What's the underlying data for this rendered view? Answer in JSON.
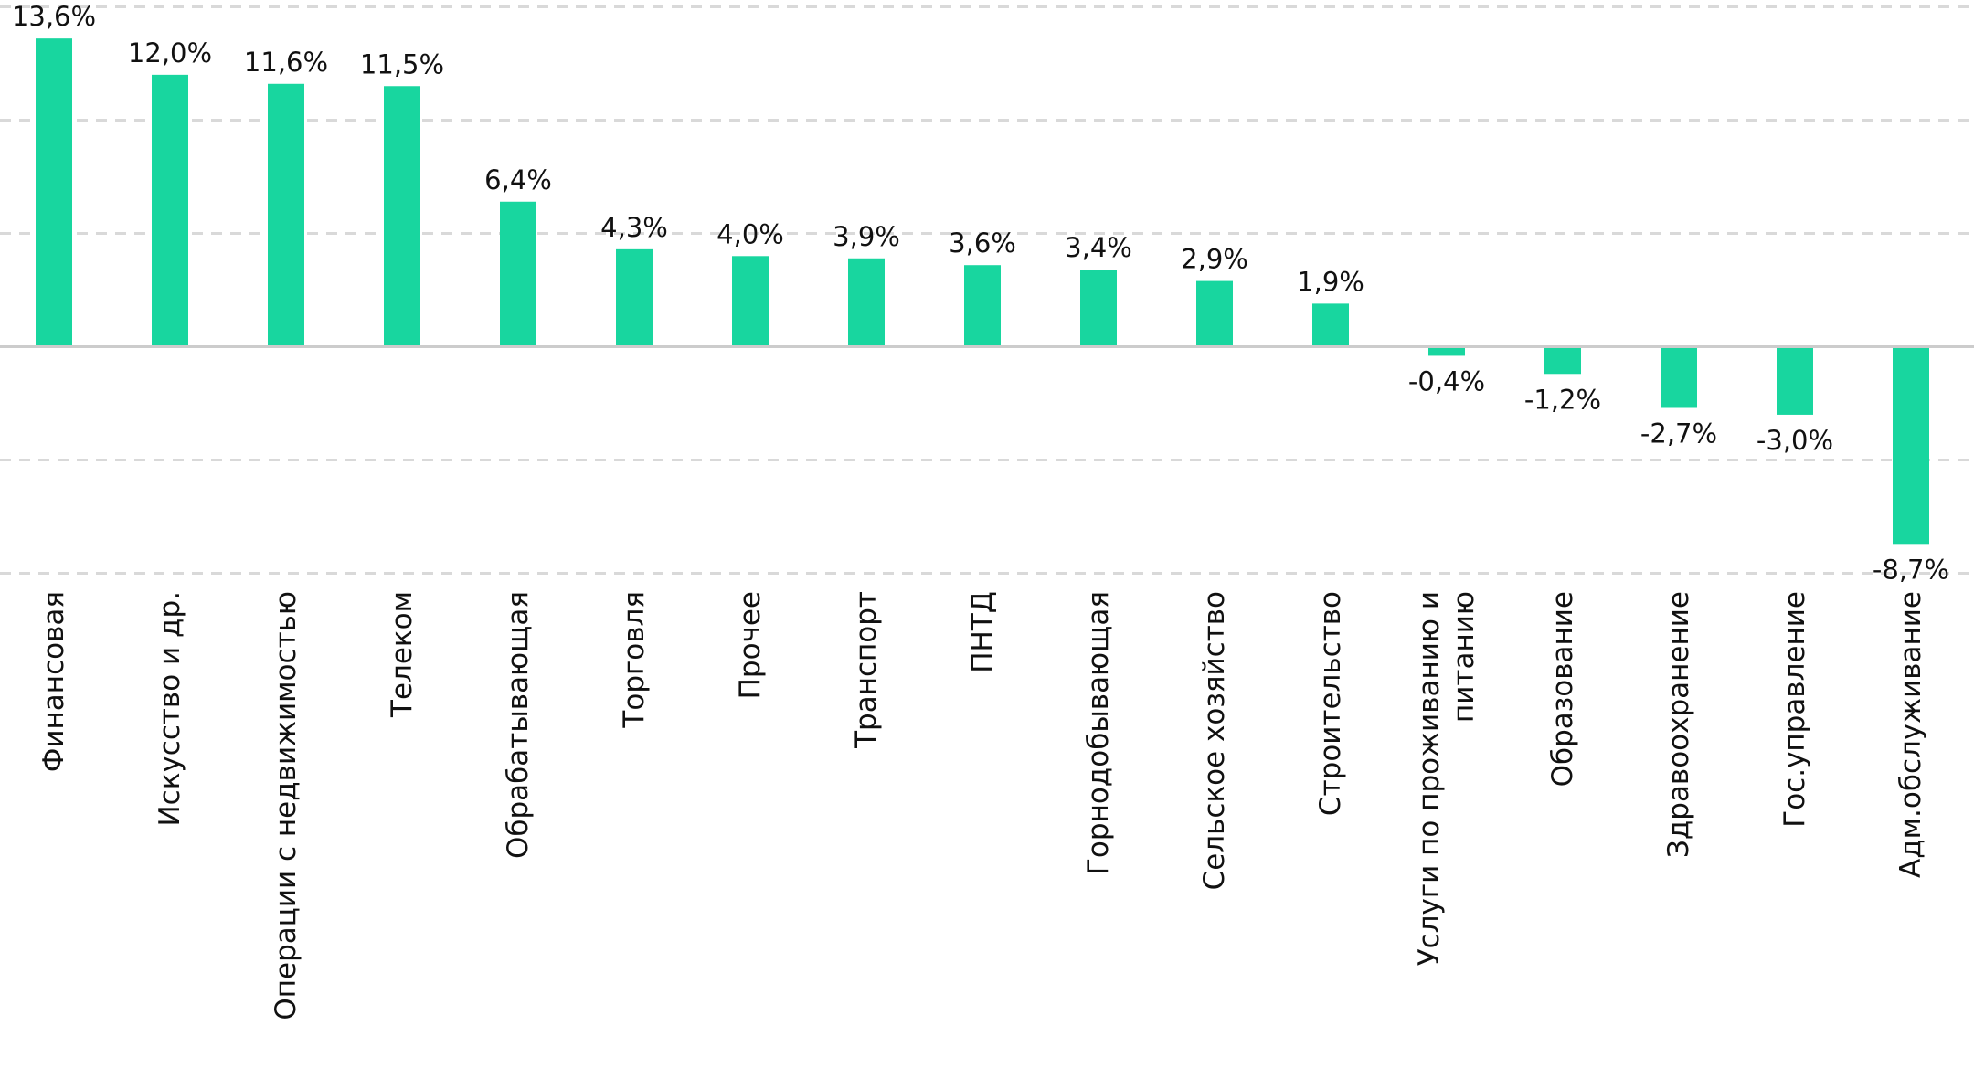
{
  "chart_data": {
    "type": "bar",
    "title": "",
    "xlabel": "",
    "ylabel": "",
    "ylim": [
      -10.3,
      15.3
    ],
    "grid_values": [
      -10,
      -5,
      5,
      10,
      15
    ],
    "grid": true,
    "legend": "none",
    "colors": {
      "bar": "#18d69f",
      "grid": "#d9d9d9",
      "zero_line": "#cccccc",
      "text": "#111111"
    },
    "categories": [
      "Финансовая",
      "Искусство и др.",
      "Операции с недвижимостью",
      "Телеком",
      "Обрабатывающая",
      "Торговля",
      "Прочее",
      "Транспорт",
      "ПНТД",
      "Горнодобывающая",
      "Сельское хозяйство",
      "Строительство",
      "Услуги по проживанию и питанию",
      "Образование",
      "Здравоохранение",
      "Гос.управление",
      "Адм.обслуживание"
    ],
    "category_lines": [
      [
        "Финансовая"
      ],
      [
        "Искусство и др."
      ],
      [
        "Операции с недвижимостью"
      ],
      [
        "Телеком"
      ],
      [
        "Обрабатывающая"
      ],
      [
        "Торговля"
      ],
      [
        "Прочее"
      ],
      [
        "Транспорт"
      ],
      [
        "ПНТД"
      ],
      [
        "Горнодобывающая"
      ],
      [
        "Сельское хозяйство"
      ],
      [
        "Строительство"
      ],
      [
        "Услуги по проживанию и",
        "питанию"
      ],
      [
        "Образование"
      ],
      [
        "Здравоохранение"
      ],
      [
        "Гос.управление"
      ],
      [
        "Адм.обслуживание"
      ]
    ],
    "values": [
      13.6,
      12.0,
      11.6,
      11.5,
      6.4,
      4.3,
      4.0,
      3.9,
      3.6,
      3.4,
      2.9,
      1.9,
      -0.4,
      -1.2,
      -2.7,
      -3.0,
      -8.7
    ],
    "labels": [
      "13,6%",
      "12,0%",
      "11,6%",
      "11,5%",
      "6,4%",
      "4,3%",
      "4,0%",
      "3,9%",
      "3,6%",
      "3,4%",
      "2,9%",
      "1,9%",
      "-0,4%",
      "-1,2%",
      "-2,7%",
      "-3,0%",
      "-8,7%"
    ]
  }
}
